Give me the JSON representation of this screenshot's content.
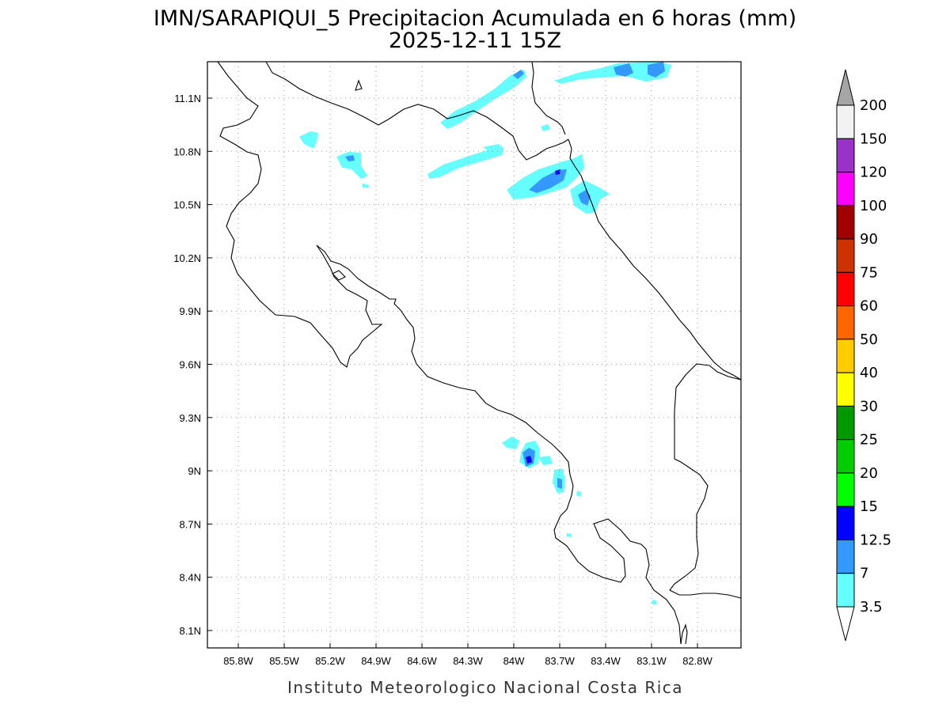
{
  "title": {
    "line1": "IMN/SARAPIQUI_5 Precipitacion Acumulada en 6 horas (mm)",
    "line2": "2025-12-11 15Z"
  },
  "credit": "Instituto Meteorologico Nacional Costa Rica",
  "map": {
    "lon_range": [
      -86.0,
      -82.5
    ],
    "lat_range": [
      8.0,
      11.3
    ],
    "lon_ticks": [
      "85.8W",
      "85.5W",
      "85.2W",
      "84.9W",
      "84.6W",
      "84.3W",
      "84W",
      "83.7W",
      "83.4W",
      "83.1W",
      "82.8W"
    ],
    "lat_ticks": [
      "11.1N",
      "10.8N",
      "10.5N",
      "10.2N",
      "9.9N",
      "9.6N",
      "9.3N",
      "9N",
      "8.7N",
      "8.4N",
      "8.1N"
    ],
    "grid": true
  },
  "colorbar": {
    "labels": [
      "200",
      "150",
      "120",
      "100",
      "90",
      "75",
      "60",
      "50",
      "40",
      "30",
      "25",
      "20",
      "15",
      "12.5",
      "7",
      "3.5"
    ],
    "colors": [
      "#f2f2f2",
      "#9b32c8",
      "#ff00ff",
      "#a00000",
      "#cc3300",
      "#ff0000",
      "#ff6600",
      "#ffcc00",
      "#ffff00",
      "#009900",
      "#00cc00",
      "#00ff00",
      "#0000ff",
      "#3399ff",
      "#66ffff"
    ],
    "top_triangle_color": "#a6a6a6",
    "bottom_triangle_color": "#ffffff"
  }
}
